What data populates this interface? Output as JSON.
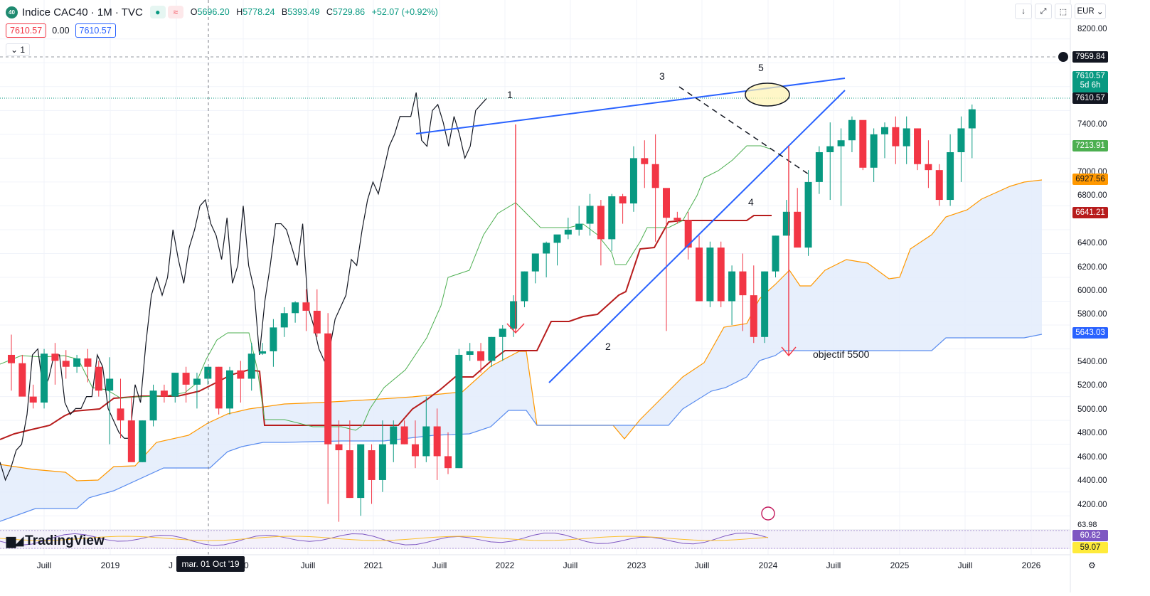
{
  "header": {
    "badge": "40",
    "title": "Indice CAC40 · 1M · TVC",
    "ohlc": [
      {
        "k": "O",
        "v": "5696.20"
      },
      {
        "k": "H",
        "v": "5778.24"
      },
      {
        "k": "B",
        "v": "5393.49"
      },
      {
        "k": "C",
        "v": "5729.86"
      },
      {
        "k": "",
        "v": "+52.07 (+0.92%)"
      }
    ],
    "bid": "7610.57",
    "spread": "0.00",
    "ask": "7610.57",
    "indicator_count": "1"
  },
  "toolbar": {
    "currency": "EUR"
  },
  "y_axis_ticks": [
    "8200.00",
    "7400.00",
    "7000.00",
    "6800.00",
    "6400.00",
    "6200.00",
    "6000.00",
    "5800.00",
    "5400.00",
    "5200.00",
    "5000.00",
    "4800.00",
    "4600.00",
    "4400.00",
    "4200.00"
  ],
  "x_axis_ticks": [
    "Juill",
    "2019",
    "J",
    "20",
    "Juill",
    "2021",
    "Juill",
    "2022",
    "Juill",
    "2023",
    "Juill",
    "2024",
    "Juill",
    "2025",
    "Juill",
    "2026"
  ],
  "crosshair_date": "mar. 01 Oct '19",
  "price_labels": {
    "crosshair": "7959.84",
    "last": "7610.57",
    "countdown": "5d 6h",
    "last2": "7610.57",
    "tenkan": "7213.91",
    "span_a": "6927.56",
    "kijun": "6641.21",
    "span_b": "5643.03",
    "osc_top": "63.98",
    "osc1": "60.82",
    "osc2": "59.07"
  },
  "annotations": {
    "w1": "1",
    "w2": "2",
    "w3": "3",
    "w4": "4",
    "w5": "5",
    "target": "objectif 5500"
  },
  "brand": "TradingView",
  "colors": {
    "up": "#089981",
    "down": "#f23645",
    "trend": "#2962ff",
    "kijun": "#b71c1c",
    "tenkan": "#4caf50",
    "spanA": "#ff9800",
    "spanB": "#5b8def",
    "cloud": "#e3ecfb"
  },
  "chart_data": {
    "type": "candlestick",
    "ylim": [
      4100,
      8300
    ],
    "candles_ohlc": [
      [
        5550,
        5720,
        5250,
        5480
      ],
      [
        5480,
        5550,
        5250,
        5200
      ],
      [
        5200,
        5300,
        5100,
        5150
      ],
      [
        5150,
        5600,
        5100,
        5560
      ],
      [
        5560,
        5650,
        5300,
        5500
      ],
      [
        5500,
        5590,
        5350,
        5450
      ],
      [
        5450,
        5550,
        5400,
        5520
      ],
      [
        5520,
        5600,
        5320,
        5450
      ],
      [
        5450,
        5500,
        5200,
        5250
      ],
      [
        5250,
        5530,
        4800,
        5350
      ],
      [
        5100,
        5350,
        4850,
        5000
      ],
      [
        5000,
        5200,
        4700,
        4650
      ],
      [
        4650,
        5000,
        4650,
        5000
      ],
      [
        5000,
        5300,
        4950,
        5250
      ],
      [
        5250,
        5300,
        5150,
        5200
      ],
      [
        5200,
        5400,
        5150,
        5400
      ],
      [
        5400,
        5450,
        5150,
        5300
      ],
      [
        5300,
        5400,
        5100,
        5350
      ],
      [
        5350,
        5450,
        5300,
        5450
      ],
      [
        5450,
        5450,
        5050,
        5100
      ],
      [
        5100,
        5450,
        5050,
        5420
      ],
      [
        5420,
        5500,
        5150,
        5350
      ],
      [
        5350,
        5650,
        5250,
        5560
      ],
      [
        5560,
        5650,
        5550,
        5580
      ],
      [
        5580,
        5850,
        5450,
        5780
      ],
      [
        5780,
        5950,
        5700,
        5900
      ],
      [
        5900,
        6000,
        5820,
        5990
      ],
      [
        5990,
        6100,
        5750,
        5920
      ],
      [
        5920,
        6100,
        5700,
        5730
      ],
      [
        5730,
        5900,
        4300,
        4800
      ],
      [
        4800,
        5000,
        4150,
        4750
      ],
      [
        4750,
        5000,
        4350,
        4350
      ],
      [
        4350,
        4800,
        4200,
        4800
      ],
      [
        4750,
        4800,
        4300,
        4500
      ],
      [
        4500,
        5000,
        4400,
        4800
      ],
      [
        4800,
        5000,
        4650,
        4950
      ],
      [
        4950,
        5000,
        4800,
        4800
      ],
      [
        4800,
        5000,
        4600,
        4700
      ],
      [
        4700,
        5200,
        4650,
        4950
      ],
      [
        4950,
        5100,
        4500,
        4700
      ],
      [
        4700,
        4900,
        4550,
        4600
      ],
      [
        4600,
        5600,
        4600,
        5550
      ],
      [
        5550,
        5650,
        5500,
        5580
      ],
      [
        5580,
        5650,
        5400,
        5500
      ],
      [
        5500,
        5700,
        5450,
        5700
      ],
      [
        5700,
        5800,
        5500,
        5770
      ],
      [
        5770,
        6050,
        5700,
        6000
      ],
      [
        6000,
        6250,
        5950,
        6250
      ],
      [
        6250,
        6400,
        6150,
        6400
      ],
      [
        6400,
        6500,
        6200,
        6490
      ],
      [
        6490,
        6550,
        6300,
        6560
      ],
      [
        6560,
        6700,
        6520,
        6600
      ],
      [
        6600,
        6800,
        6550,
        6650
      ],
      [
        6650,
        6900,
        6550,
        6800
      ],
      [
        6800,
        6850,
        6300,
        6520
      ],
      [
        6520,
        6900,
        6420,
        6880
      ],
      [
        6880,
        6900,
        6650,
        6820
      ],
      [
        6820,
        7300,
        6750,
        7200
      ],
      [
        7200,
        7350,
        6950,
        7150
      ],
      [
        7150,
        7400,
        6500,
        6950
      ],
      [
        6950,
        6900,
        5750,
        6700
      ],
      [
        6700,
        6750,
        6650,
        6680
      ],
      [
        6680,
        6750,
        6350,
        6450
      ],
      [
        6450,
        6550,
        6150,
        6000
      ],
      [
        6000,
        6500,
        5950,
        6450
      ],
      [
        6450,
        6500,
        5950,
        6000
      ],
      [
        6000,
        6300,
        5800,
        6250
      ],
      [
        6250,
        6400,
        5750,
        6050
      ],
      [
        6050,
        6300,
        5650,
        5700
      ],
      [
        5700,
        6250,
        5650,
        6250
      ],
      [
        6250,
        6550,
        6200,
        6550
      ],
      [
        6550,
        6850,
        6550,
        6750
      ],
      [
        6750,
        6950,
        6500,
        6450
      ],
      [
        6450,
        7100,
        6380,
        7000
      ],
      [
        7000,
        7300,
        6900,
        7250
      ],
      [
        7250,
        7500,
        6850,
        7300
      ],
      [
        7300,
        7450,
        6800,
        7350
      ],
      [
        7350,
        7550,
        7250,
        7520
      ],
      [
        7520,
        7500,
        7100,
        7120
      ],
      [
        7120,
        7450,
        7000,
        7400
      ],
      [
        7400,
        7500,
        7200,
        7460
      ],
      [
        7460,
        7550,
        7150,
        7300
      ],
      [
        7300,
        7550,
        7150,
        7450
      ],
      [
        7450,
        7450,
        7100,
        7150
      ],
      [
        7150,
        7350,
        6950,
        7100
      ],
      [
        7100,
        7150,
        6800,
        6850
      ],
      [
        6850,
        7400,
        6800,
        7250
      ],
      [
        7250,
        7550,
        7000,
        7450
      ],
      [
        7450,
        7650,
        7200,
        7610
      ]
    ],
    "close_line": [
      4650,
      4500,
      4600,
      4750,
      4800,
      5050,
      5550,
      5600,
      5250,
      5350,
      5550,
      5550,
      5150,
      5050,
      5100,
      5100,
      5200,
      5200,
      5550,
      5450,
      5100,
      5000,
      4900,
      4850,
      4850,
      5300,
      5150,
      5650,
      6050,
      6200,
      6050,
      6200,
      6600,
      6350,
      6150,
      6450,
      6600,
      6800,
      6850,
      6650,
      6550,
      6350,
      6700,
      6150,
      6300,
      6800,
      6300,
      6100,
      5550,
      6000,
      6300,
      6650,
      6650,
      6600,
      6450,
      6300,
      6650,
      5950,
      5800,
      5600,
      5500,
      5600,
      5850,
      5950,
      6050,
      6350,
      6300,
      6600,
      6850,
      7000,
      6900,
      7100,
      7300,
      7400,
      7550,
      7550,
      7550,
      7750,
      7350,
      7300,
      7600,
      7650,
      7500,
      7300,
      7550,
      7400,
      7200,
      7300,
      7600,
      7650,
      7700
    ]
  }
}
